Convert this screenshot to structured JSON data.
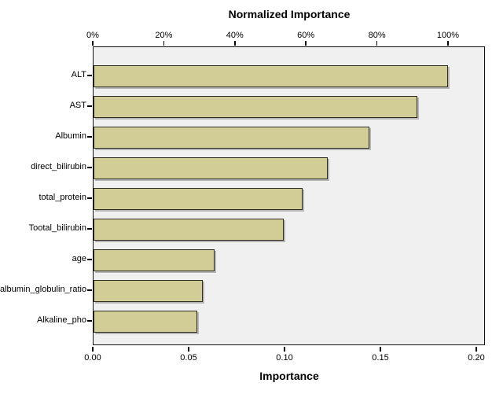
{
  "chart_data": {
    "type": "bar",
    "orientation": "horizontal",
    "title": "Normalized Importance",
    "xlabel": "Importance",
    "categories": [
      "ALT",
      "AST",
      "Albumin",
      "direct_bilirubin",
      "total_protein",
      "Tootal_bilirubin",
      "age",
      "albumin_globulin_ratio",
      "Alkaline_pho"
    ],
    "values": [
      0.185,
      0.169,
      0.144,
      0.122,
      0.109,
      0.099,
      0.063,
      0.057,
      0.054
    ],
    "normalized_percent": [
      100,
      92,
      78,
      66,
      59,
      54,
      34,
      31,
      29
    ],
    "bottom_axis": {
      "label": "Importance",
      "tick_labels": [
        "0.00",
        "0.05",
        "0.10",
        "0.15",
        "0.20"
      ],
      "tick_values": [
        0.0,
        0.05,
        0.1,
        0.15,
        0.2
      ],
      "range": [
        0.0,
        0.205
      ]
    },
    "top_axis": {
      "label": "Normalized Importance",
      "tick_labels": [
        "0%",
        "20%",
        "40%",
        "60%",
        "80%",
        "100%"
      ],
      "tick_values": [
        0,
        20,
        40,
        60,
        80,
        100
      ]
    },
    "legend": null,
    "grid": false,
    "colors": {
      "bar_fill": "#d2cd96",
      "bar_border": "#2e2c1e",
      "plot_bg": "#f0f0f0",
      "axis": "#000000",
      "page_bg": "#ffffff"
    }
  }
}
